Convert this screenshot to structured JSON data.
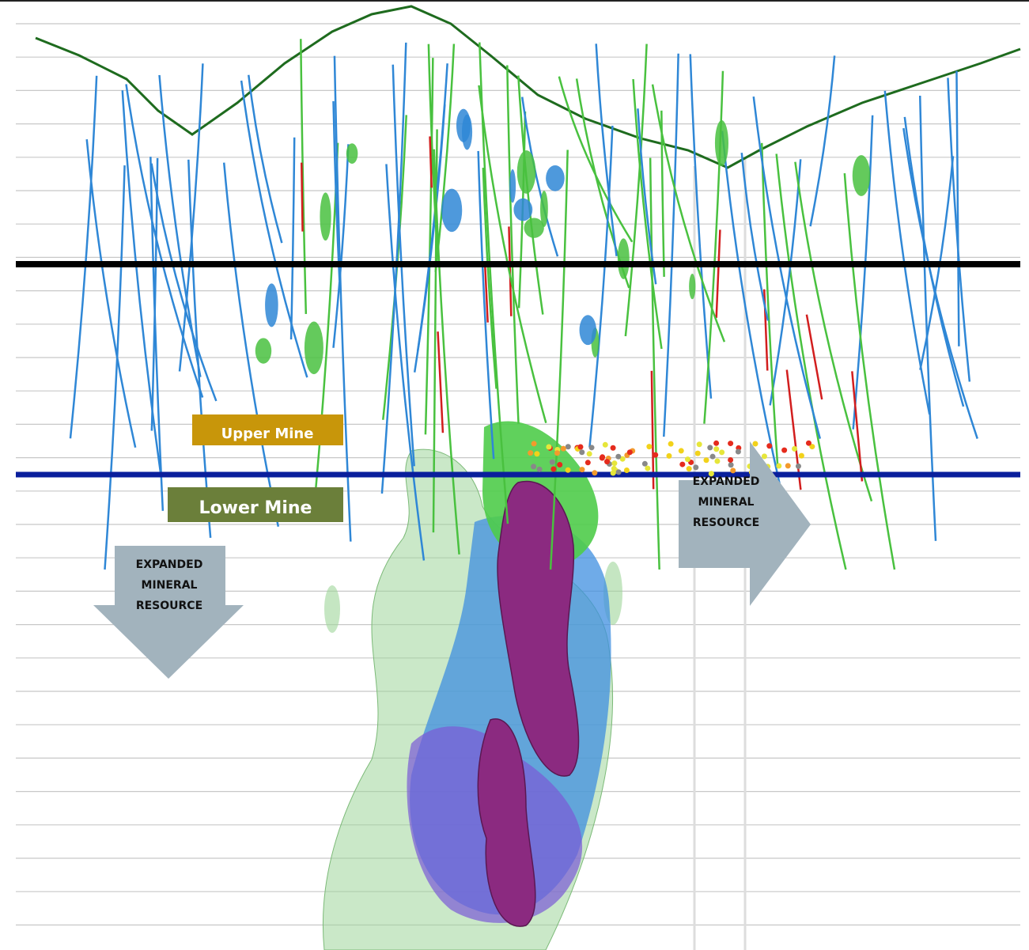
{
  "labels": {
    "upper_mine": "Upper Mine",
    "lower_mine": "Lower Mine",
    "expanded_right": [
      "EXPANDED",
      "MINERAL",
      "RESOURCE"
    ],
    "expanded_left": [
      "EXPANDED",
      "MINERAL",
      "RESOURCE"
    ]
  }
}
